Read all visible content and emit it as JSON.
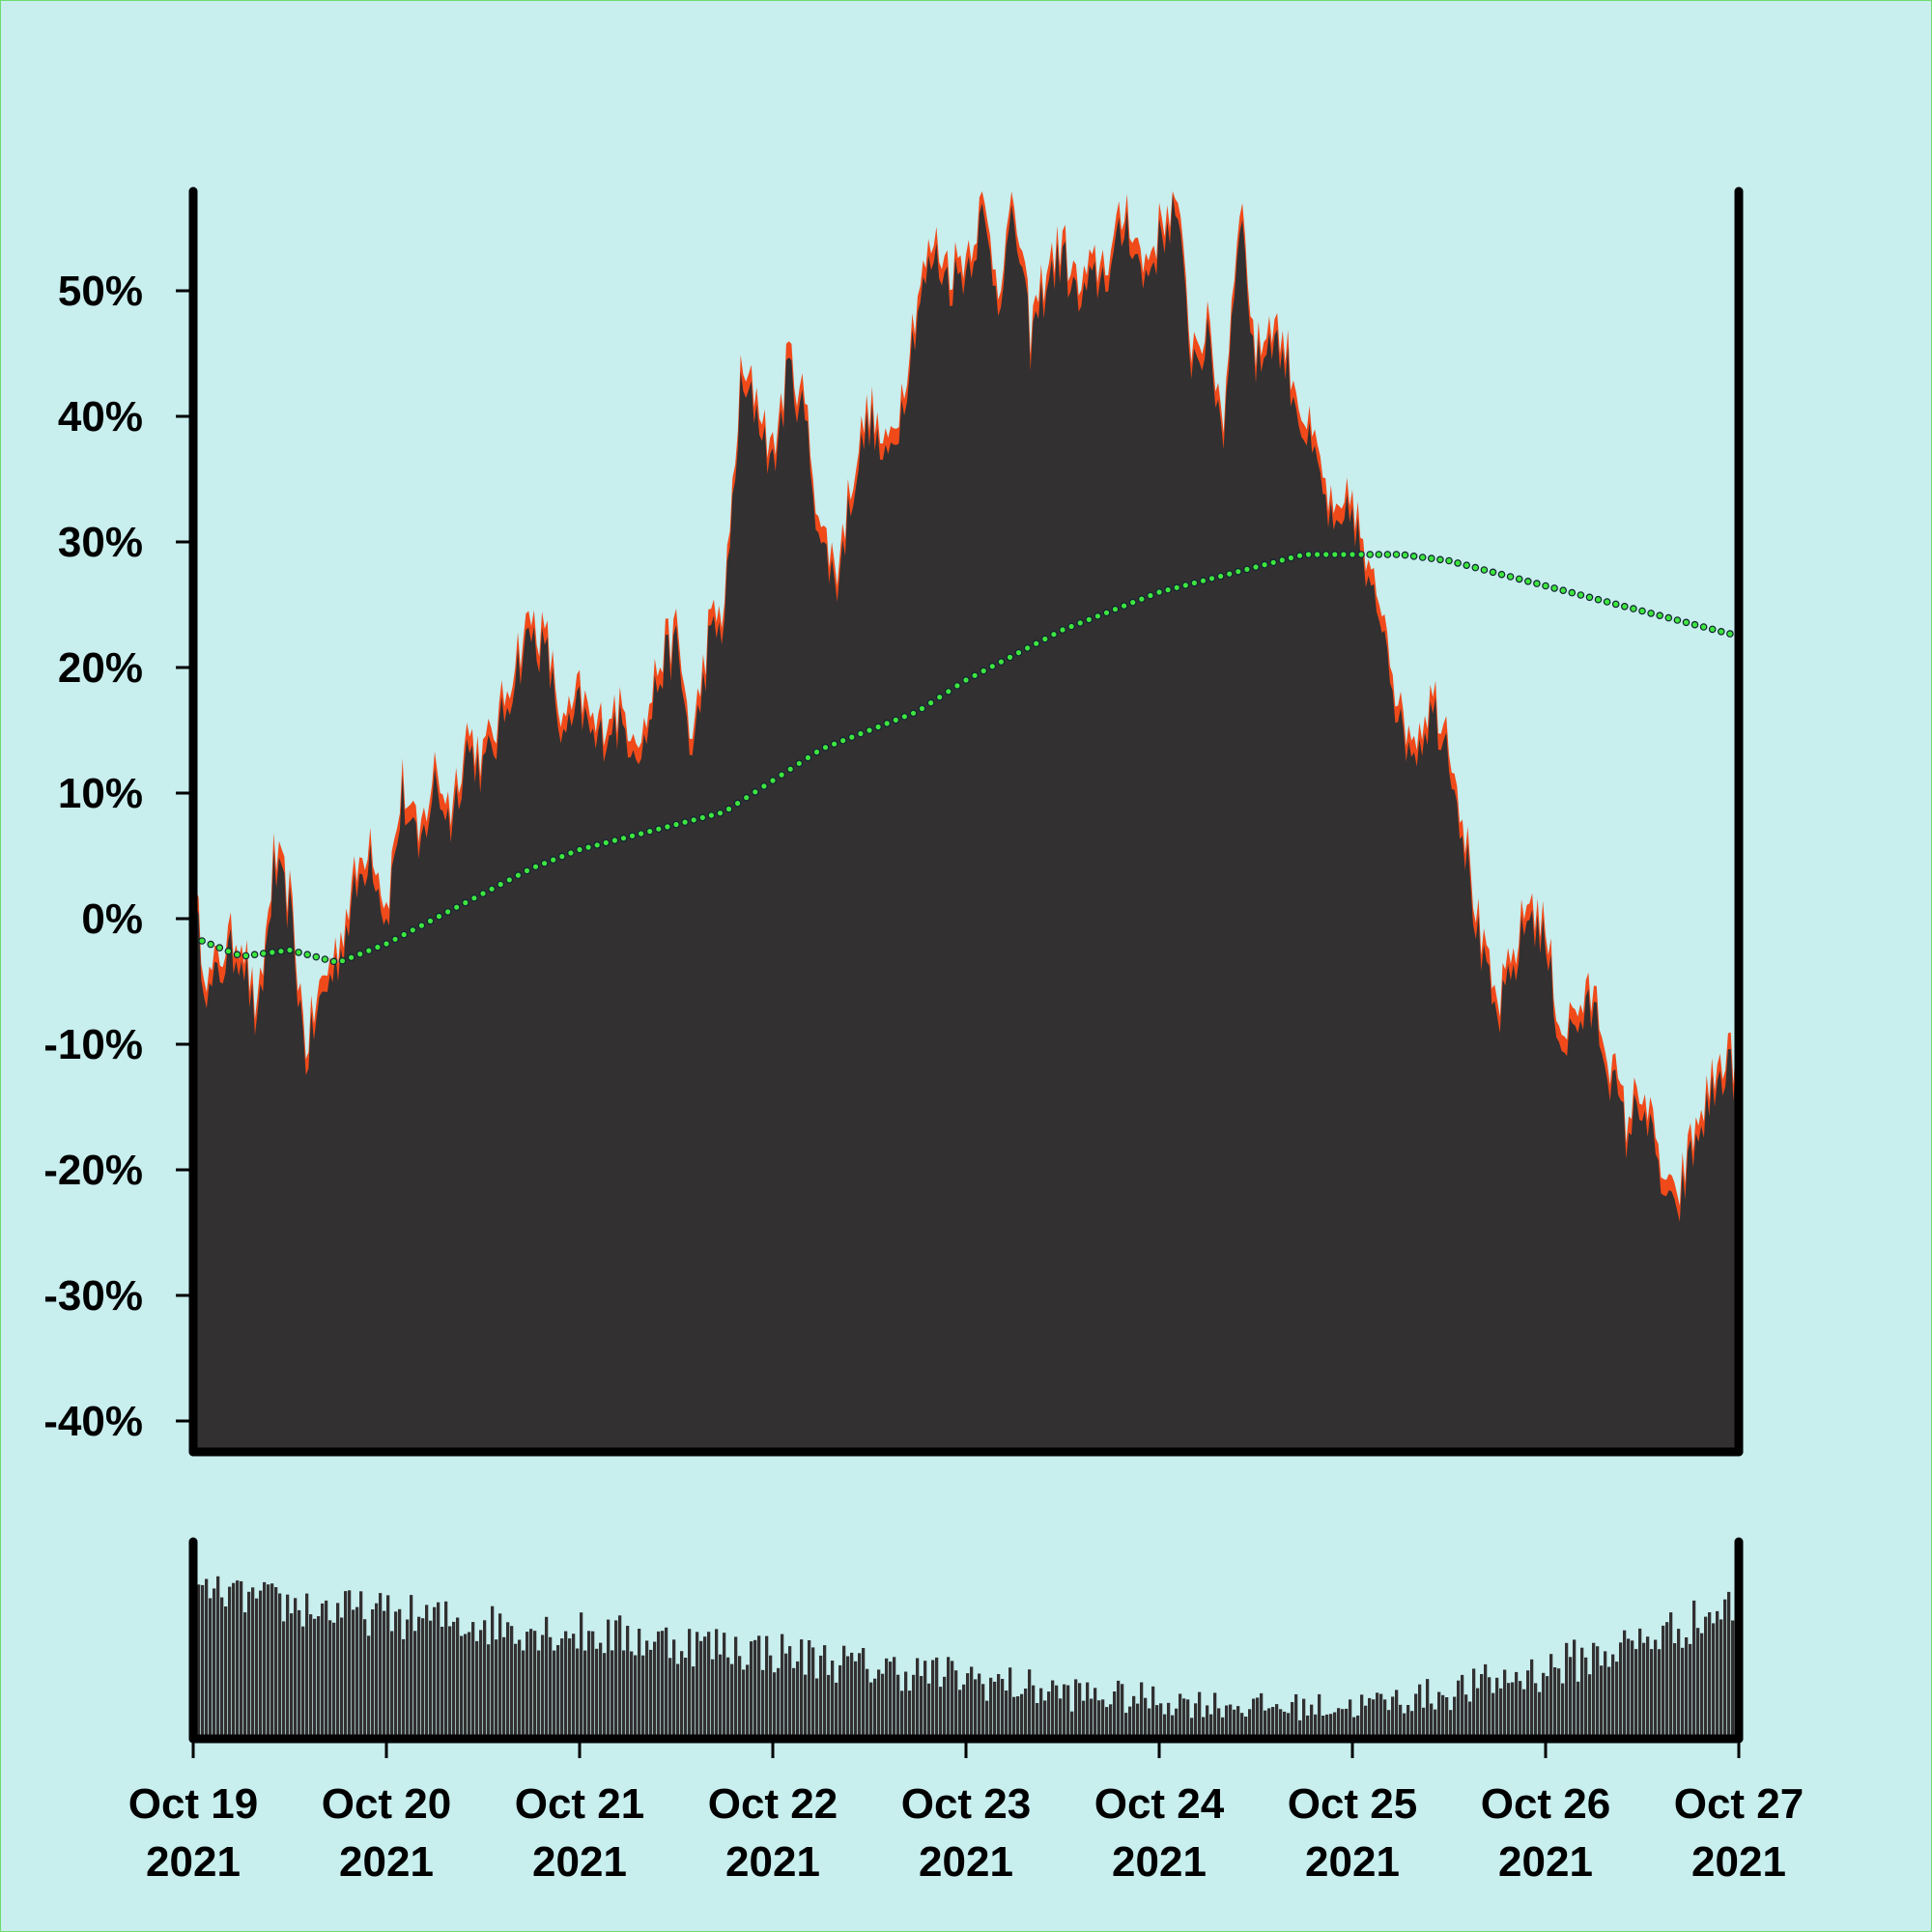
{
  "colors": {
    "background": "#c8eeee",
    "border": "#6fdc6f",
    "area_fill": "#323031",
    "high_low_band": "#f04a1a",
    "moving_average": "#3ee63e",
    "volume_bars": "#323031",
    "axis": "#000000"
  },
  "chart_data": {
    "type": "area",
    "title": "",
    "xlabel": "",
    "ylabel": "",
    "ylim": [
      -40,
      58
    ],
    "y_ticks": [
      "50%",
      "40%",
      "30%",
      "20%",
      "10%",
      "0%",
      "-10%",
      "-20%",
      "-30%",
      "-40%"
    ],
    "y_tick_values": [
      50,
      40,
      30,
      20,
      10,
      0,
      -10,
      -20,
      -30,
      -40
    ],
    "xlim": [
      "2021-10-19",
      "2021-10-27"
    ],
    "x_ticks": [
      {
        "date": "2021-10-19",
        "line1": "Oct 19",
        "line2": "2021"
      },
      {
        "date": "2021-10-20",
        "line1": "Oct 20",
        "line2": "2021"
      },
      {
        "date": "2021-10-21",
        "line1": "Oct 21",
        "line2": "2021"
      },
      {
        "date": "2021-10-22",
        "line1": "Oct 22",
        "line2": "2021"
      },
      {
        "date": "2021-10-23",
        "line1": "Oct 23",
        "line2": "2021"
      },
      {
        "date": "2021-10-24",
        "line1": "Oct 24",
        "line2": "2021"
      },
      {
        "date": "2021-10-25",
        "line1": "Oct 25",
        "line2": "2021"
      },
      {
        "date": "2021-10-26",
        "line1": "Oct 26",
        "line2": "2021"
      },
      {
        "date": "2021-10-27",
        "line1": "Oct 27",
        "line2": "2021"
      }
    ],
    "grid": false,
    "legend": "none",
    "series": [
      {
        "role": "percent-change area with high/low band",
        "points": [
          [
            "2021-10-19 00:00",
            1
          ],
          [
            "2021-10-19 02:00",
            -6
          ],
          [
            "2021-10-19 04:00",
            -3
          ],
          [
            "2021-10-19 06:00",
            -2
          ],
          [
            "2021-10-19 08:00",
            -9
          ],
          [
            "2021-10-19 10:00",
            4
          ],
          [
            "2021-10-19 12:00",
            1
          ],
          [
            "2021-10-19 14:00",
            -11
          ],
          [
            "2021-10-19 16:00",
            -6
          ],
          [
            "2021-10-19 18:00",
            -3
          ],
          [
            "2021-10-19 20:00",
            2
          ],
          [
            "2021-10-19 22:00",
            6
          ],
          [
            "2021-10-20 00:00",
            0
          ],
          [
            "2021-10-20 02:00",
            10
          ],
          [
            "2021-10-20 04:00",
            5
          ],
          [
            "2021-10-20 06:00",
            11
          ],
          [
            "2021-10-20 08:00",
            8
          ],
          [
            "2021-10-20 10:00",
            14
          ],
          [
            "2021-10-20 12:00",
            12
          ],
          [
            "2021-10-20 14:00",
            15
          ],
          [
            "2021-10-20 16:00",
            20
          ],
          [
            "2021-10-20 18:00",
            23
          ],
          [
            "2021-10-20 20:00",
            21
          ],
          [
            "2021-10-20 22:00",
            14
          ],
          [
            "2021-10-21 00:00",
            17
          ],
          [
            "2021-10-21 02:00",
            14
          ],
          [
            "2021-10-21 04:00",
            16
          ],
          [
            "2021-10-21 06:00",
            15
          ],
          [
            "2021-10-21 08:00",
            14
          ],
          [
            "2021-10-21 10:00",
            20
          ],
          [
            "2021-10-21 12:00",
            22
          ],
          [
            "2021-10-21 14:00",
            13
          ],
          [
            "2021-10-21 16:00",
            22
          ],
          [
            "2021-10-21 18:00",
            24
          ],
          [
            "2021-10-21 20:00",
            42
          ],
          [
            "2021-10-21 22:00",
            41
          ],
          [
            "2021-10-22 00:00",
            36
          ],
          [
            "2021-10-22 02:00",
            44
          ],
          [
            "2021-10-22 04:00",
            40
          ],
          [
            "2021-10-22 06:00",
            30
          ],
          [
            "2021-10-22 08:00",
            27
          ],
          [
            "2021-10-22 10:00",
            35
          ],
          [
            "2021-10-22 12:00",
            40
          ],
          [
            "2021-10-22 14:00",
            36
          ],
          [
            "2021-10-22 16:00",
            41
          ],
          [
            "2021-10-22 18:00",
            49
          ],
          [
            "2021-10-22 20:00",
            53
          ],
          [
            "2021-10-22 22:00",
            51
          ],
          [
            "2021-10-23 00:00",
            52
          ],
          [
            "2021-10-23 02:00",
            56
          ],
          [
            "2021-10-23 04:00",
            50
          ],
          [
            "2021-10-23 06:00",
            56
          ],
          [
            "2021-10-23 08:00",
            46
          ],
          [
            "2021-10-23 10:00",
            51
          ],
          [
            "2021-10-23 12:00",
            53
          ],
          [
            "2021-10-23 14:00",
            49
          ],
          [
            "2021-10-23 16:00",
            51
          ],
          [
            "2021-10-23 18:00",
            52
          ],
          [
            "2021-10-23 20:00",
            56
          ],
          [
            "2021-10-23 22:00",
            51
          ],
          [
            "2021-10-24 00:00",
            54
          ],
          [
            "2021-10-24 02:00",
            57
          ],
          [
            "2021-10-24 04:00",
            45
          ],
          [
            "2021-10-24 06:00",
            46
          ],
          [
            "2021-10-24 08:00",
            39
          ],
          [
            "2021-10-24 10:00",
            57
          ],
          [
            "2021-10-24 12:00",
            44
          ],
          [
            "2021-10-24 14:00",
            47
          ],
          [
            "2021-10-24 16:00",
            44
          ],
          [
            "2021-10-24 18:00",
            39
          ],
          [
            "2021-10-24 20:00",
            35
          ],
          [
            "2021-10-24 22:00",
            30
          ],
          [
            "2021-10-25 00:00",
            33
          ],
          [
            "2021-10-25 02:00",
            26
          ],
          [
            "2021-10-25 04:00",
            24
          ],
          [
            "2021-10-25 06:00",
            15
          ],
          [
            "2021-10-25 08:00",
            14
          ],
          [
            "2021-10-25 10:00",
            17
          ],
          [
            "2021-10-25 12:00",
            14
          ],
          [
            "2021-10-25 14:00",
            6
          ],
          [
            "2021-10-25 16:00",
            -3
          ],
          [
            "2021-10-25 18:00",
            -8
          ],
          [
            "2021-10-25 20:00",
            -4
          ],
          [
            "2021-10-25 22:00",
            1
          ],
          [
            "2021-10-26 00:00",
            -2
          ],
          [
            "2021-10-26 02:00",
            -10
          ],
          [
            "2021-10-26 04:00",
            -8
          ],
          [
            "2021-10-26 06:00",
            -7
          ],
          [
            "2021-10-26 08:00",
            -12
          ],
          [
            "2021-10-26 10:00",
            -17
          ],
          [
            "2021-10-26 12:00",
            -14
          ],
          [
            "2021-10-26 14:00",
            -20
          ],
          [
            "2021-10-26 16:00",
            -24
          ],
          [
            "2021-10-26 18:00",
            -19
          ],
          [
            "2021-10-26 20:00",
            -15
          ],
          [
            "2021-10-26 22:00",
            -12
          ]
        ]
      },
      {
        "role": "moving average (dotted)",
        "points": [
          [
            "2021-10-19 00:00",
            -1.5
          ],
          [
            "2021-10-19 06:00",
            -3
          ],
          [
            "2021-10-19 12:00",
            -2.5
          ],
          [
            "2021-10-19 18:00",
            -3.5
          ],
          [
            "2021-10-20 00:00",
            -2
          ],
          [
            "2021-10-20 06:00",
            0
          ],
          [
            "2021-10-20 12:00",
            2
          ],
          [
            "2021-10-20 18:00",
            4
          ],
          [
            "2021-10-21 00:00",
            5.5
          ],
          [
            "2021-10-21 06:00",
            6.5
          ],
          [
            "2021-10-21 12:00",
            7.5
          ],
          [
            "2021-10-21 18:00",
            8.5
          ],
          [
            "2021-10-22 00:00",
            11
          ],
          [
            "2021-10-22 06:00",
            13.5
          ],
          [
            "2021-10-22 12:00",
            15
          ],
          [
            "2021-10-22 18:00",
            16.5
          ],
          [
            "2021-10-23 00:00",
            19
          ],
          [
            "2021-10-23 06:00",
            21
          ],
          [
            "2021-10-23 12:00",
            23
          ],
          [
            "2021-10-23 18:00",
            24.5
          ],
          [
            "2021-10-24 00:00",
            26
          ],
          [
            "2021-10-24 06:00",
            27
          ],
          [
            "2021-10-24 12:00",
            28
          ],
          [
            "2021-10-24 18:00",
            29
          ],
          [
            "2021-10-25 00:00",
            29
          ],
          [
            "2021-10-25 06:00",
            29
          ],
          [
            "2021-10-25 12:00",
            28.5
          ],
          [
            "2021-10-25 18:00",
            27.5
          ],
          [
            "2021-10-26 00:00",
            26.5
          ],
          [
            "2021-10-26 06:00",
            25.5
          ],
          [
            "2021-10-26 12:00",
            24.5
          ],
          [
            "2021-10-26 18:00",
            23.5
          ],
          [
            "2021-10-27 00:00",
            22.5
          ]
        ]
      }
    ],
    "volume": {
      "relative_levels": [
        [
          0.75,
          0.9
        ],
        [
          0.6,
          0.85
        ],
        [
          0.55,
          0.8
        ],
        [
          0.5,
          0.75
        ],
        [
          0.45,
          0.7
        ],
        [
          0.4,
          0.65
        ],
        [
          0.35,
          0.6
        ],
        [
          0.28,
          0.5
        ],
        [
          0.22,
          0.45
        ],
        [
          0.15,
          0.35
        ],
        [
          0.12,
          0.3
        ],
        [
          0.1,
          0.25
        ],
        [
          0.1,
          0.25
        ],
        [
          0.15,
          0.35
        ],
        [
          0.25,
          0.5
        ],
        [
          0.4,
          0.65
        ],
        [
          0.6,
          0.85
        ]
      ]
    }
  }
}
